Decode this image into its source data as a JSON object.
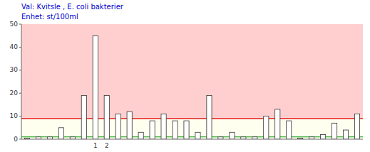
{
  "chart_data": {
    "type": "bar",
    "title": "Val: Kvitsle , E. coli bakterier",
    "subtitle": "Enhet: st/100ml",
    "categories": [
      null,
      null,
      null,
      null,
      null,
      null,
      "1",
      "2",
      null,
      null,
      null,
      null,
      null,
      null,
      null,
      null,
      null,
      null,
      null,
      null,
      null,
      null,
      null,
      null,
      null,
      null,
      null,
      null,
      null,
      null
    ],
    "values": [
      0.5,
      1,
      1,
      5,
      1,
      19,
      45,
      19,
      11,
      12,
      3,
      8,
      11,
      8,
      8,
      3,
      19,
      1,
      3,
      1,
      1,
      10,
      13,
      8,
      0.5,
      1,
      2,
      7,
      4,
      11
    ],
    "color": "#FFFFFF",
    "ylim": [
      0,
      50
    ],
    "yticks": [
      0,
      10,
      20,
      30,
      40,
      50
    ],
    "grid": false,
    "plot_background": "#FFCFCF",
    "bands": [
      {
        "from": 0,
        "to": 9,
        "color": "#FFFFF0"
      }
    ],
    "lines": [
      {
        "value": 9,
        "color": "#DD0000"
      },
      {
        "value": 1,
        "color": "#009900"
      }
    ]
  }
}
